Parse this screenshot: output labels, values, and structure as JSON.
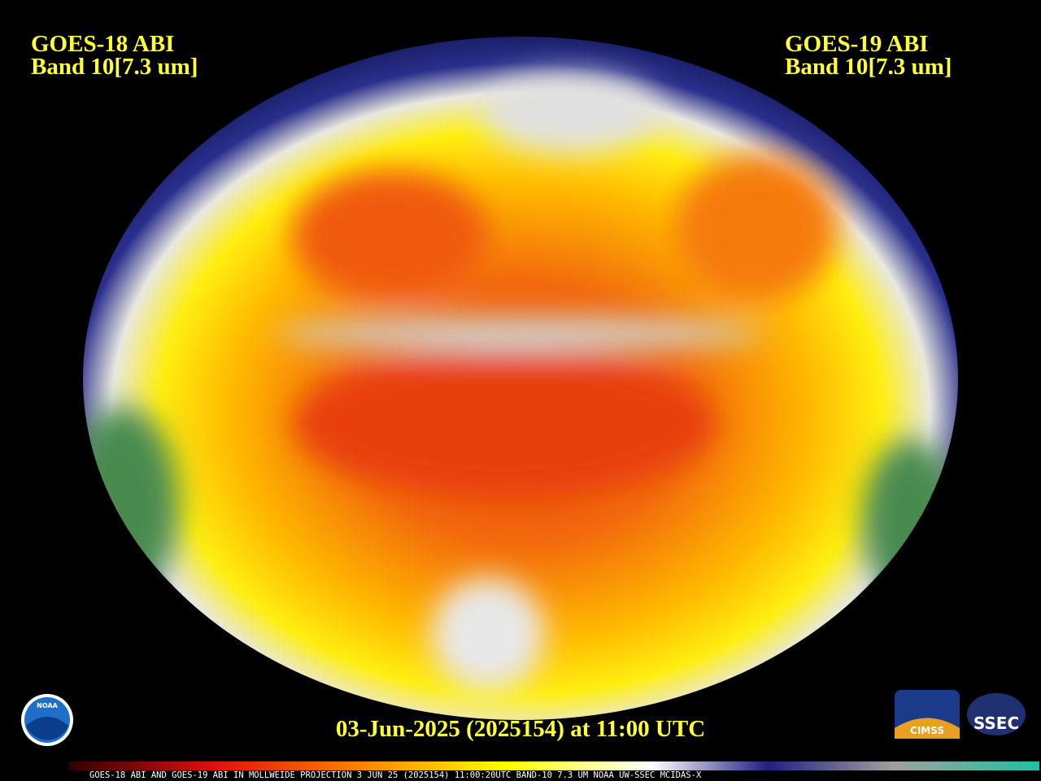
{
  "header": {
    "left": {
      "line1": "GOES-18 ABI",
      "line2": "Band 10[7.3 um]"
    },
    "right": {
      "line1": "GOES-19 ABI",
      "line2": "Band 10[7.3 um]"
    }
  },
  "timestamp": "03-Jun-2025 (2025154) at 11:00 UTC",
  "caption": "GOES-18 ABI AND GOES-19 ABI IN MOLLWEIDE PROJECTION 3 JUN 25 (2025154) 11:00:20UTC BAND-10 7.3 UM NOAA UW-SSEC MCIDAS-X",
  "logos": {
    "noaa": "NOAA",
    "cimss": "CIMSS",
    "ssec": "SSEC"
  }
}
